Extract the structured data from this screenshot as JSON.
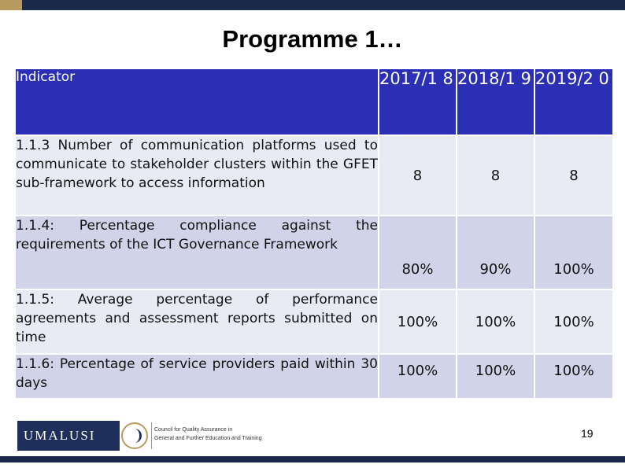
{
  "title": "Programme 1…",
  "table": {
    "header": {
      "indicator": "Indicator",
      "years": [
        "2017/1 8",
        "2018/1 9",
        "2019/2 0"
      ]
    },
    "rows": [
      {
        "indicator": "1.1.3 Number of communication platforms used to communicate to stakeholder clusters within the GFET sub-framework to access information",
        "values": [
          "8",
          "8",
          "8"
        ]
      },
      {
        "indicator": "1.1.4: Percentage compliance against the requirements of the ICT Governance Framework",
        "values": [
          "80%",
          "90%",
          "100%"
        ]
      },
      {
        "indicator": "1.1.5: Average percentage of performance agreements and assessment reports submitted on time",
        "values": [
          "100%",
          "100%",
          "100%"
        ]
      },
      {
        "indicator": "1.1.6: Percentage of service providers paid within 30 days",
        "values": [
          "100%",
          "100%",
          "100%"
        ]
      }
    ]
  },
  "footer": {
    "logo_text": "UMALUSI",
    "council_line1": "Council for Quality Assurance in",
    "council_line2": "General and Further Education and Training",
    "page_number": "19"
  },
  "colors": {
    "header_bg": "#2b2fb5",
    "row_light": "#e9ebf4",
    "row_dark": "#d1d3e8",
    "bar": "#1b2a4a",
    "gold": "#b99a5e"
  },
  "icons": [
    "umalusi-emblem-icon"
  ]
}
